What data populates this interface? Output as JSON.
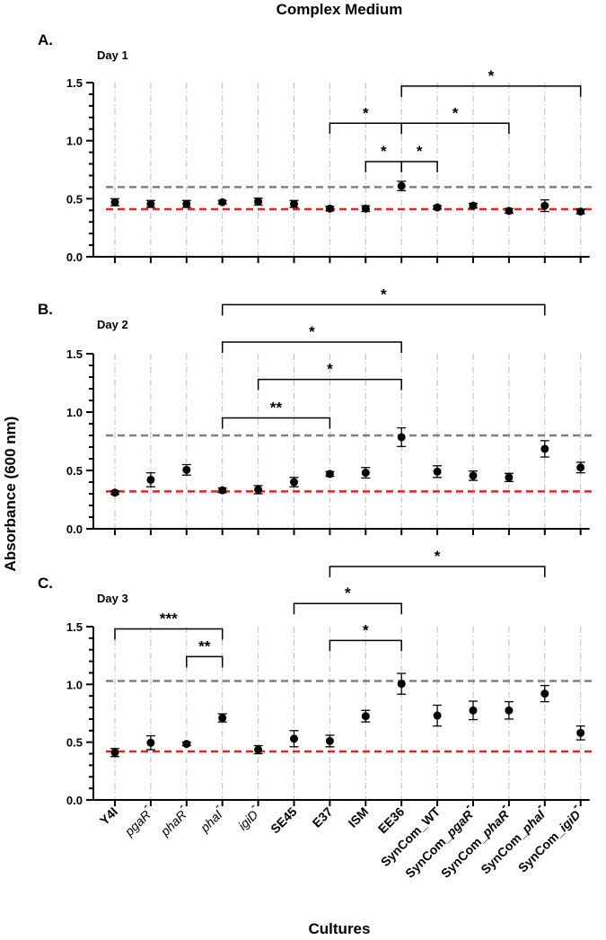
{
  "chart_data": {
    "type": "scatter",
    "title": "Complex Medium",
    "xlabel": "Cultures",
    "ylabel": "Absorbance (600 nm)",
    "categories": [
      {
        "name": "Y4I",
        "base": "Y4I",
        "style": "bold"
      },
      {
        "name": "pgaR-",
        "base": "pgaR",
        "sup": "-",
        "style": "italic"
      },
      {
        "name": "phaR-",
        "base": "phaR",
        "sup": "-",
        "style": "italic"
      },
      {
        "name": "phaI-",
        "base": "phaI",
        "sup": "-",
        "style": "italic"
      },
      {
        "name": "igiD-",
        "base": "igiD",
        "sup": "-",
        "style": "italic"
      },
      {
        "name": "SE45",
        "base": "SE45",
        "style": "bold"
      },
      {
        "name": "E37",
        "base": "E37",
        "style": "bold"
      },
      {
        "name": "ISM",
        "base": "ISM",
        "style": "bold"
      },
      {
        "name": "EE36",
        "base": "EE36",
        "style": "bold"
      },
      {
        "name": "SynCom_WT",
        "base": "SynCom_WT",
        "style": "bold"
      },
      {
        "name": "SynCom_pgaR-",
        "prefix": "SynCom_",
        "base": "pgaR",
        "sup": "-",
        "style": "mixed"
      },
      {
        "name": "SynCom_phaR-",
        "prefix": "SynCom_",
        "base": "phaR",
        "sup": "-",
        "style": "mixed"
      },
      {
        "name": "SynCom_phaI-",
        "prefix": "SynCom_",
        "base": "phaI",
        "sup": "-",
        "style": "mixed"
      },
      {
        "name": "SynCom_igiD-",
        "prefix": "SynCom_",
        "base": "igiD",
        "sup": "-",
        "style": "mixed"
      }
    ],
    "ylim": [
      0,
      1.5
    ],
    "yticks": [
      0.0,
      0.5,
      1.0,
      1.5
    ],
    "ytick_labels": [
      "0.0",
      "0.5",
      "1.0",
      "1.5"
    ],
    "panels": [
      {
        "letter": "A.",
        "label": "Day 1",
        "values": [
          0.47,
          0.455,
          0.455,
          0.47,
          0.475,
          0.455,
          0.415,
          0.415,
          0.61,
          0.425,
          0.44,
          0.395,
          0.44,
          0.39
        ],
        "errors": [
          0.03,
          0.03,
          0.03,
          0.015,
          0.03,
          0.03,
          0.02,
          0.025,
          0.04,
          0.015,
          0.02,
          0.02,
          0.05,
          0.02
        ],
        "ref_gray": 0.6,
        "ref_red": 0.41,
        "brackets": [
          {
            "from": "EE36",
            "to": "SynCom_igiD-",
            "y": 1.47,
            "label": "*"
          },
          {
            "from": "E37",
            "to": "EE36",
            "y": 1.15,
            "label": "*"
          },
          {
            "from": "EE36",
            "to": "SynCom_phaR-",
            "y": 1.15,
            "label": "*"
          },
          {
            "from": "ISM",
            "to": "EE36",
            "y": 0.82,
            "label": "*"
          },
          {
            "from": "EE36",
            "to": "SynCom_WT",
            "y": 0.82,
            "label": "*"
          }
        ]
      },
      {
        "letter": "B.",
        "label": "Day 2",
        "values": [
          0.31,
          0.42,
          0.505,
          0.33,
          0.335,
          0.4,
          0.47,
          0.48,
          0.785,
          0.49,
          0.455,
          0.44,
          0.685,
          0.525
        ],
        "errors": [
          0.015,
          0.06,
          0.045,
          0.02,
          0.035,
          0.04,
          0.02,
          0.045,
          0.08,
          0.05,
          0.04,
          0.035,
          0.07,
          0.045
        ],
        "ref_gray": 0.8,
        "ref_red": 0.32,
        "brackets": [
          {
            "from": "phaI-",
            "to": "SynCom_phaI-",
            "y": 1.92,
            "label": "*"
          },
          {
            "from": "phaI-",
            "to": "EE36",
            "y": 1.6,
            "label": "*"
          },
          {
            "from": "igiD-",
            "to": "EE36",
            "y": 1.28,
            "label": "*"
          },
          {
            "from": "phaI-",
            "to": "E37",
            "y": 0.95,
            "label": "**"
          }
        ]
      },
      {
        "letter": "C.",
        "label": "Day 3",
        "values": [
          0.41,
          0.495,
          0.485,
          0.71,
          0.435,
          0.53,
          0.51,
          0.725,
          1.005,
          0.73,
          0.775,
          0.775,
          0.92,
          0.58
        ],
        "errors": [
          0.035,
          0.06,
          0.015,
          0.035,
          0.035,
          0.07,
          0.05,
          0.05,
          0.09,
          0.09,
          0.08,
          0.075,
          0.07,
          0.06
        ],
        "ref_gray": 1.03,
        "ref_red": 0.42,
        "brackets": [
          {
            "from": "E37",
            "to": "SynCom_phaI-",
            "y": 2.02,
            "label": "*"
          },
          {
            "from": "SE45",
            "to": "EE36",
            "y": 1.7,
            "label": "*"
          },
          {
            "from": "Y4I",
            "to": "phaI-",
            "y": 1.48,
            "label": "***"
          },
          {
            "from": "E37",
            "to": "EE36",
            "y": 1.38,
            "label": "*"
          },
          {
            "from": "phaR-",
            "to": "phaI-",
            "y": 1.24,
            "label": "**"
          }
        ]
      }
    ],
    "colors": {
      "gray_line": "#808080",
      "red_line": "#e8201e",
      "grid": "#bdbdbd",
      "point": "#000000"
    }
  }
}
